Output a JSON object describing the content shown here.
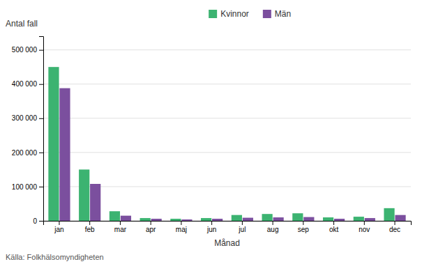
{
  "chart_data": {
    "type": "bar",
    "categories": [
      "jan",
      "feb",
      "mar",
      "apr",
      "maj",
      "jun",
      "jul",
      "aug",
      "sep",
      "okt",
      "nov",
      "dec"
    ],
    "series": [
      {
        "name": "Kvinnor",
        "color": "#3CB371",
        "values": [
          450000,
          150000,
          28000,
          8000,
          6000,
          8000,
          17000,
          20000,
          22000,
          10000,
          12000,
          37000
        ]
      },
      {
        "name": "Män",
        "color": "#7B4F9E",
        "values": [
          388000,
          108000,
          15000,
          6000,
          4000,
          6000,
          9000,
          10000,
          11000,
          6000,
          8000,
          17000
        ]
      }
    ],
    "x_label": "Månad",
    "y_label": "Antal fall",
    "annotations": [
      "Källa: Folkhälsomyndigheten"
    ],
    "ylim": [
      0,
      540000
    ],
    "yticks": [
      0,
      {
        "value": 100000,
        "label": "100 000"
      },
      {
        "value": 200000,
        "label": "200 000"
      },
      {
        "value": 300000,
        "label": "300 000"
      },
      {
        "value": 400000,
        "label": "400 000"
      },
      {
        "value": 500000,
        "label": "500 000"
      }
    ],
    "grid": true,
    "legend": "top"
  }
}
